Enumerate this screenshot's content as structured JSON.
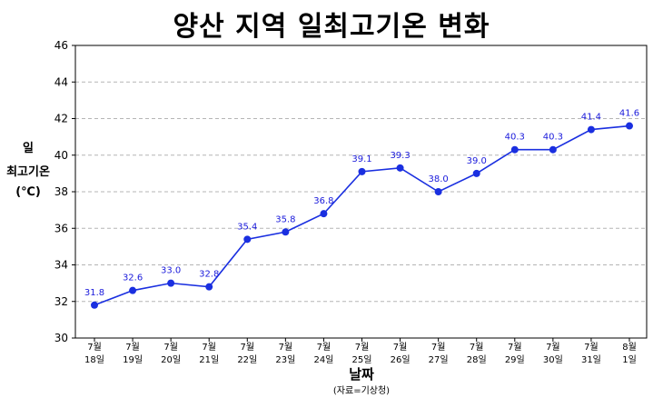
{
  "chart_data": {
    "type": "line",
    "title": "양산 지역 일최고기온 변화",
    "ylabel_lines": [
      "일",
      "최고기온",
      "(℃)"
    ],
    "xlabel": "날짜",
    "source": "(자료=기상청)",
    "categories": [
      [
        "7월",
        "18일"
      ],
      [
        "7월",
        "19일"
      ],
      [
        "7월",
        "20일"
      ],
      [
        "7월",
        "21일"
      ],
      [
        "7월",
        "22일"
      ],
      [
        "7월",
        "23일"
      ],
      [
        "7월",
        "24일"
      ],
      [
        "7월",
        "25일"
      ],
      [
        "7월",
        "26일"
      ],
      [
        "7월",
        "27일"
      ],
      [
        "7월",
        "28일"
      ],
      [
        "7월",
        "29일"
      ],
      [
        "7월",
        "30일"
      ],
      [
        "7월",
        "31일"
      ],
      [
        "8월",
        "1일"
      ]
    ],
    "values": [
      31.8,
      32.6,
      33.0,
      32.8,
      35.4,
      35.8,
      36.8,
      39.1,
      39.3,
      38.0,
      39.0,
      40.3,
      40.3,
      41.4,
      41.6
    ],
    "data_labels": [
      "31.8",
      "32.6",
      "33.0",
      "32.8",
      "35.4",
      "35.8",
      "36.8",
      "39.1",
      "39.3",
      "38.0",
      "39.0",
      "40.3",
      "40.3",
      "41.4",
      "41.6"
    ],
    "ylim": [
      30,
      46
    ],
    "yticks": [
      30,
      32,
      34,
      36,
      38,
      40,
      42,
      44,
      46
    ],
    "grid": true,
    "line_color": "#1a2fe0",
    "label_color": "#1a1adb"
  }
}
